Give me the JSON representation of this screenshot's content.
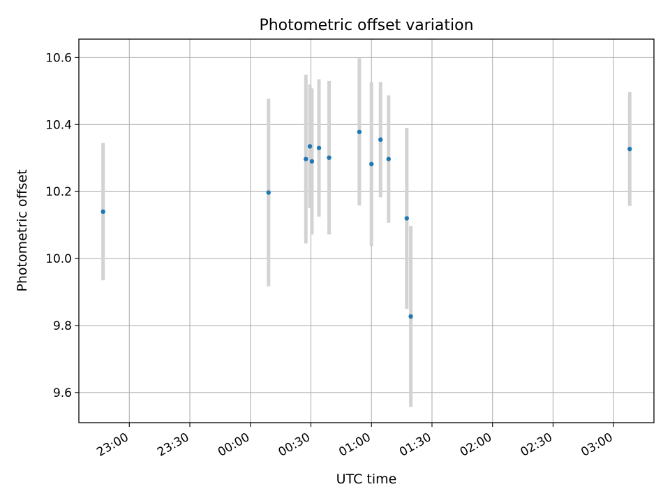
{
  "chart_data": {
    "type": "scatter",
    "title": "Photometric offset variation",
    "xlabel": "UTC time",
    "ylabel": "Photometric offset",
    "x_tick_labels": [
      "23:00",
      "23:30",
      "00:00",
      "00:30",
      "01:00",
      "01:30",
      "02:00",
      "02:30",
      "03:00"
    ],
    "x_tick_minutes": [
      -60,
      -30,
      0,
      30,
      60,
      90,
      120,
      150,
      180
    ],
    "y_tick_labels": [
      "9.6",
      "9.8",
      "10.0",
      "10.2",
      "10.4",
      "10.6"
    ],
    "y_ticks": [
      9.6,
      9.8,
      10.0,
      10.2,
      10.4,
      10.6
    ],
    "xlim_minutes": [
      -85,
      200
    ],
    "ylim": [
      9.51,
      10.655
    ],
    "grid": true,
    "colors": {
      "point": "#1f77b4",
      "errorbar": "#d3d3d3",
      "grid": "#b0b0b0"
    },
    "series": [
      {
        "x_minutes": [
          -73,
          9,
          27.5,
          29.5,
          30.5,
          34,
          39,
          54,
          60,
          64.5,
          68.5,
          77.5,
          79.5,
          188
        ],
        "y": [
          10.14,
          10.197,
          10.297,
          10.335,
          10.29,
          10.33,
          10.301,
          10.378,
          10.282,
          10.355,
          10.297,
          10.12,
          9.827,
          10.327
        ],
        "yerr": [
          0.205,
          0.28,
          0.252,
          0.185,
          0.218,
          0.205,
          0.229,
          0.22,
          0.245,
          0.172,
          0.19,
          0.27,
          0.27,
          0.17
        ]
      }
    ]
  }
}
